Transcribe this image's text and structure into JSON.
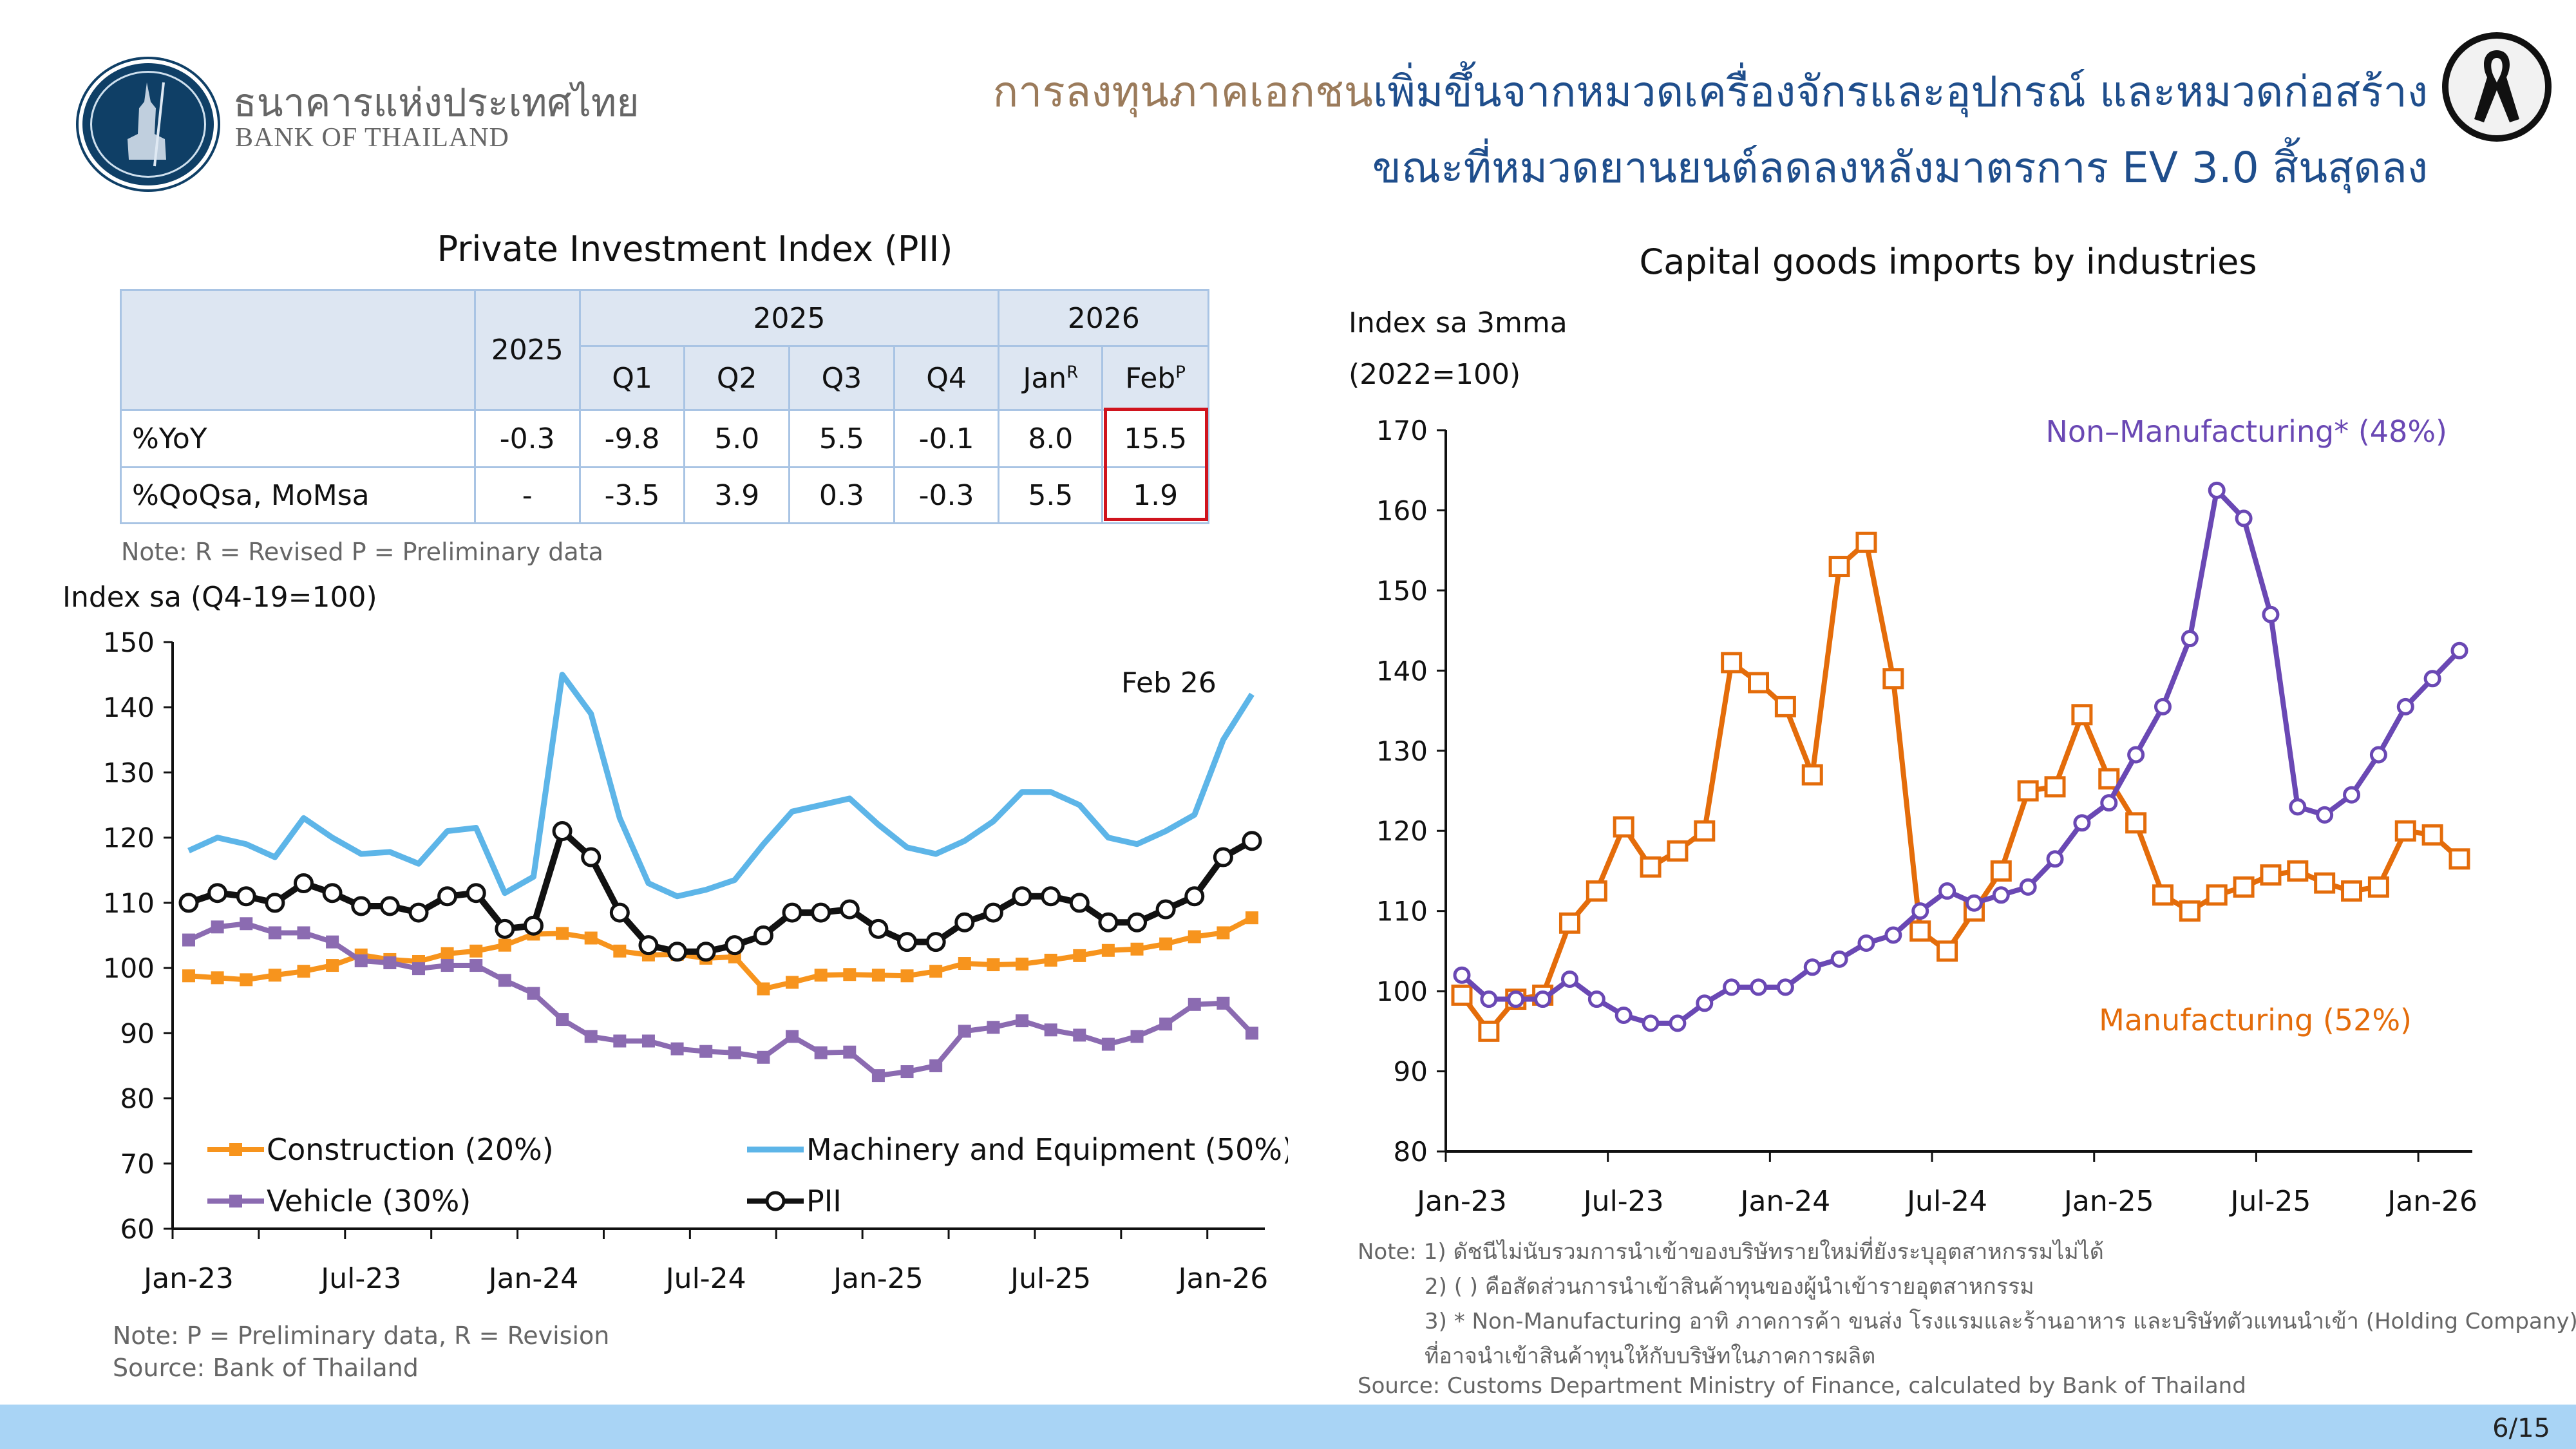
{
  "header": {
    "logo_th": "ธนาคารแห่งประเทศไทย",
    "logo_en": "BANK OF THAILAND",
    "title_line1_highlight": "การลงทุนภาคเอกชน",
    "title_line1_rest": "เพิ่มขึ้นจากหมวดเครื่องจักรและอุปกรณ์ และหมวดก่อสร้าง",
    "title_line2": "ขณะที่หมวดยานยนต์ลดลงหลังมาตรการ EV 3.0 สิ้นสุดลง"
  },
  "pii_table": {
    "title": "Private Investment Index (PII)",
    "header_top": [
      "2025",
      "2025",
      "2026"
    ],
    "header_sub": [
      "Q1",
      "Q2",
      "Q3",
      "Q4",
      "Jan",
      "Feb"
    ],
    "jan_sup": "R",
    "feb_sup": "P",
    "rows": [
      {
        "label": "%YoY",
        "values": [
          "-0.3",
          "-9.8",
          "5.0",
          "5.5",
          "-0.1",
          "8.0",
          "15.5"
        ]
      },
      {
        "label": "%QoQsa, MoMsa",
        "values": [
          "-",
          "-3.5",
          "3.9",
          "0.3",
          "-0.3",
          "5.5",
          "1.9"
        ]
      }
    ],
    "note": "Note: R = Revised P = Preliminary data"
  },
  "left_notes": {
    "line1": "Note: P = Preliminary data, R = Revision",
    "line2": "Source: Bank of Thailand"
  },
  "right_notes": {
    "line1": "Note: 1) ดัชนีไม่นับรวมการนำเข้าของบริษัทรายใหม่ที่ยังระบุอุตสาหกรรมไม่ได้",
    "line2": "2) ( ) คือสัดส่วนการนำเข้าสินค้าทุนของผู้นำเข้ารายอุตสาหกรรม",
    "line3": "3) * Non-Manufacturing อาทิ ภาคการค้า ขนส่ง โรงแรมและร้านอาหาร และบริษัทตัวแทนนำเข้า (Holding Company)",
    "line4": "ที่อาจนำเข้าสินค้าทุนให้กับบริษัทในภาคการผลิต",
    "source": "Source: Customs Department Ministry of Finance, calculated by Bank of Thailand"
  },
  "page": "6/15",
  "chart_data": [
    {
      "type": "line",
      "title": "",
      "ylabel": "Index sa (Q4-19=100)",
      "ylim": [
        60,
        150
      ],
      "yticks": [
        60,
        70,
        80,
        90,
        100,
        110,
        120,
        130,
        140,
        150
      ],
      "xtick_labels": [
        "Jan-23",
        "Jul-23",
        "Jan-24",
        "Jul-24",
        "Jan-25",
        "Jul-25",
        "Jan-26"
      ],
      "x_start": "Jan-23",
      "x_end": "Feb-26",
      "annotation": "Feb 26",
      "legend": "bottom",
      "series": [
        {
          "name": "Construction (20%)",
          "color": "#f7941d",
          "marker": "square",
          "values": [
            98.8,
            98.5,
            98.2,
            98.9,
            99.5,
            100.4,
            102,
            101.3,
            101,
            102.2,
            102.6,
            103.5,
            105.2,
            105.3,
            104.6,
            102.6,
            102,
            102.1,
            101.5,
            101.7,
            96.8,
            97.8,
            98.9,
            99,
            98.9,
            98.8,
            99.5,
            100.7,
            100.5,
            100.6,
            101.2,
            101.9,
            102.7,
            102.9,
            103.7,
            104.8,
            105.4,
            107.7
          ]
        },
        {
          "name": "Machinery and Equipment (50%)",
          "color": "#5db5e8",
          "marker": "none",
          "values": [
            118,
            120,
            119,
            117,
            123,
            120,
            117.5,
            117.8,
            116,
            121,
            121.5,
            111.5,
            114,
            145,
            139,
            123,
            113,
            111,
            112,
            113.5,
            119,
            124,
            125,
            126,
            122,
            118.5,
            117.5,
            119.5,
            122.5,
            127,
            127,
            125,
            120,
            119,
            121,
            123.5,
            135,
            142
          ]
        },
        {
          "name": "Vehicle (30%)",
          "color": "#8b6bb1",
          "marker": "square",
          "values": [
            104.3,
            106.3,
            106.8,
            105.4,
            105.4,
            104,
            101.1,
            100.8,
            99.9,
            100.4,
            100.4,
            98.1,
            96.1,
            92.1,
            89.5,
            88.8,
            88.8,
            87.6,
            87.2,
            87,
            86.3,
            89.5,
            87,
            87.1,
            83.5,
            84.1,
            85,
            90.3,
            90.9,
            91.9,
            90.5,
            89.7,
            88.3,
            89.5,
            91.4,
            94.4,
            94.6,
            90
          ]
        },
        {
          "name": "PII",
          "color": "#111111",
          "marker": "circle",
          "values": [
            110,
            111.5,
            111,
            110,
            113,
            111.5,
            109.5,
            109.5,
            108.5,
            111,
            111.5,
            106,
            106.5,
            121,
            117,
            108.5,
            103.5,
            102.5,
            102.5,
            103.5,
            105,
            108.5,
            108.5,
            109,
            106,
            104,
            104,
            107,
            108.5,
            111,
            111,
            110,
            107,
            107,
            109,
            111,
            117,
            119.5
          ]
        }
      ]
    },
    {
      "type": "line",
      "title": "Capital goods imports by industries",
      "ylabel": "Index sa 3mma",
      "ylabel2": "(2022=100)",
      "ylim": [
        80,
        170
      ],
      "yticks": [
        80,
        90,
        100,
        110,
        120,
        130,
        140,
        150,
        160,
        170
      ],
      "xtick_labels": [
        "Jan-23",
        "Jul-23",
        "Jan-24",
        "Jul-24",
        "Jan-25",
        "Jul-25",
        "Jan-26"
      ],
      "x_start": "Jan-23",
      "x_end": "Feb-26",
      "series": [
        {
          "name": "Manufacturing (52%)",
          "color": "#e46c0a",
          "marker": "open-square",
          "values": [
            99.5,
            95,
            99,
            99.5,
            108.5,
            112.5,
            120.5,
            115.5,
            117.5,
            120,
            141,
            138.5,
            135.5,
            127,
            153,
            156,
            139,
            107.5,
            105,
            110,
            115,
            125,
            125.5,
            134.5,
            126.5,
            121,
            112,
            110,
            112,
            113,
            114.5,
            115,
            113.5,
            112.5,
            113,
            120,
            119.5,
            116.5
          ]
        },
        {
          "name": "Non–Manufacturing* (48%)",
          "color": "#6a48b4",
          "marker": "open-circle",
          "values": [
            102,
            99,
            99,
            99,
            101.5,
            99,
            97,
            96,
            96,
            98.5,
            100.5,
            100.5,
            100.5,
            103,
            104,
            106,
            107,
            110,
            112.5,
            111,
            112,
            113,
            116.5,
            121,
            123.5,
            129.5,
            135.5,
            144,
            162.5,
            159,
            147,
            123,
            122,
            124.5,
            129.5,
            135.5,
            139,
            142.5
          ]
        }
      ]
    }
  ]
}
